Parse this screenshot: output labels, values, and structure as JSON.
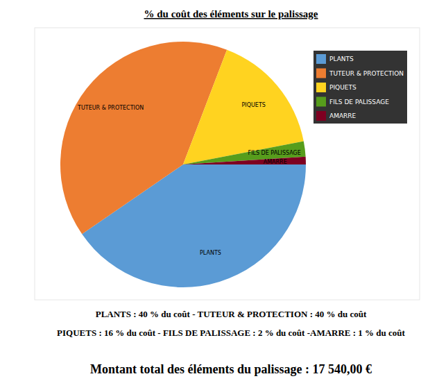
{
  "chart_data": {
    "type": "pie",
    "title": "% du coût des éléments sur le palissage",
    "categories": [
      "PLANTS",
      "TUTEUR & PROTECTION",
      "PIQUETS",
      "FILS DE PALISSAGE",
      "AMARRE"
    ],
    "values": [
      40,
      40,
      16,
      2,
      1
    ],
    "colors": [
      "#5b9bd5",
      "#ed7d31",
      "#ffd320",
      "#579d1c",
      "#7e0021"
    ],
    "legend": "top-right",
    "annotations": [
      "PLANTS : 40 % du coût - TUTEUR & PROTECTION : 40 % du coût",
      "PIQUETS : 16 % du coût - FILS DE PALISSAGE : 2 % du coût -AMARRE : 1 % du coût"
    ],
    "caption": "Montant total des éléments du palissage : 17 540,00 €"
  }
}
